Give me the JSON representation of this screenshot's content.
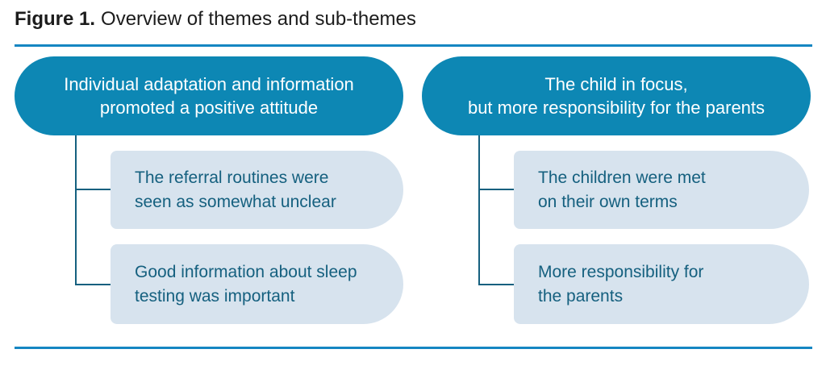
{
  "header": {
    "figure_label": "Figure 1.",
    "title": "Overview of themes and sub-themes"
  },
  "colors": {
    "theme_fill": "#0d87b4",
    "theme_text": "#ffffff",
    "subtheme_fill": "#d7e3ee",
    "subtheme_text": "#15607f",
    "connector_line": "#15607f",
    "accent_rule": "#1586c2",
    "title_text": "#1c1c1c"
  },
  "themes": [
    {
      "label": "Individual adaptation and information\npromoted a positive attitude",
      "subthemes": [
        "The referral routines were\nseen as somewhat unclear",
        "Good information about sleep\ntesting was important"
      ]
    },
    {
      "label": "The child in focus,\nbut more responsibility for the parents",
      "subthemes": [
        "The children were met\non their own terms",
        "More responsibility for\nthe parents"
      ]
    }
  ]
}
